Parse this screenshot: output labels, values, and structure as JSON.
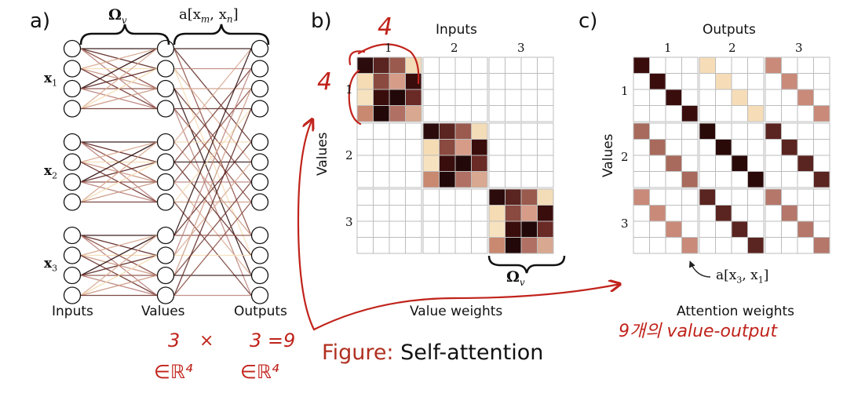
{
  "panels": {
    "a": {
      "label": "a)",
      "omega_label": "Ω",
      "omega_sub": "v",
      "attn_label": "a[x",
      "attn_m": "m",
      "attn_sep": ", x",
      "attn_n": "n",
      "attn_close": "]",
      "x_labels": [
        {
          "base": "x",
          "sub": "1"
        },
        {
          "base": "x",
          "sub": "2"
        },
        {
          "base": "x",
          "sub": "3"
        }
      ],
      "col_labels": [
        "Inputs",
        "Values",
        "Outputs"
      ]
    },
    "b": {
      "label": "b)",
      "top_title": "Inputs",
      "top_numbers": [
        "1",
        "2",
        "3"
      ],
      "side_title": "Values",
      "side_numbers": [
        "1",
        "2",
        "3"
      ],
      "omega_label": "Ω",
      "omega_sub": "v",
      "bottom_title": "Value weights"
    },
    "c": {
      "label": "c)",
      "top_title": "Outputs",
      "top_numbers": [
        "1",
        "2",
        "3"
      ],
      "side_title": "Values",
      "side_numbers": [
        "1",
        "2",
        "3"
      ],
      "arrow_label": "a[x",
      "arrow_sub1": "3",
      "arrow_sep": ", x",
      "arrow_sub2": "1",
      "arrow_close": "]",
      "bottom_title": "Attention weights"
    }
  },
  "caption": {
    "prefix": "Figure:",
    "title": "Self-attention"
  },
  "handwriting": {
    "top_4": "4",
    "side_4": "4",
    "line1_left": "3",
    "line1_x": "×",
    "line1_right": "3 =9",
    "line2_left": "∈ℝ⁴",
    "line2_right": "∈ℝ⁴",
    "right_note": "9개의 value-output"
  },
  "colors": {
    "accent_red": "#c0231b",
    "grid_line": "#b9b9b9",
    "weight_dark": "#3a0d0d",
    "weight_light": "#f6ddb8"
  }
}
